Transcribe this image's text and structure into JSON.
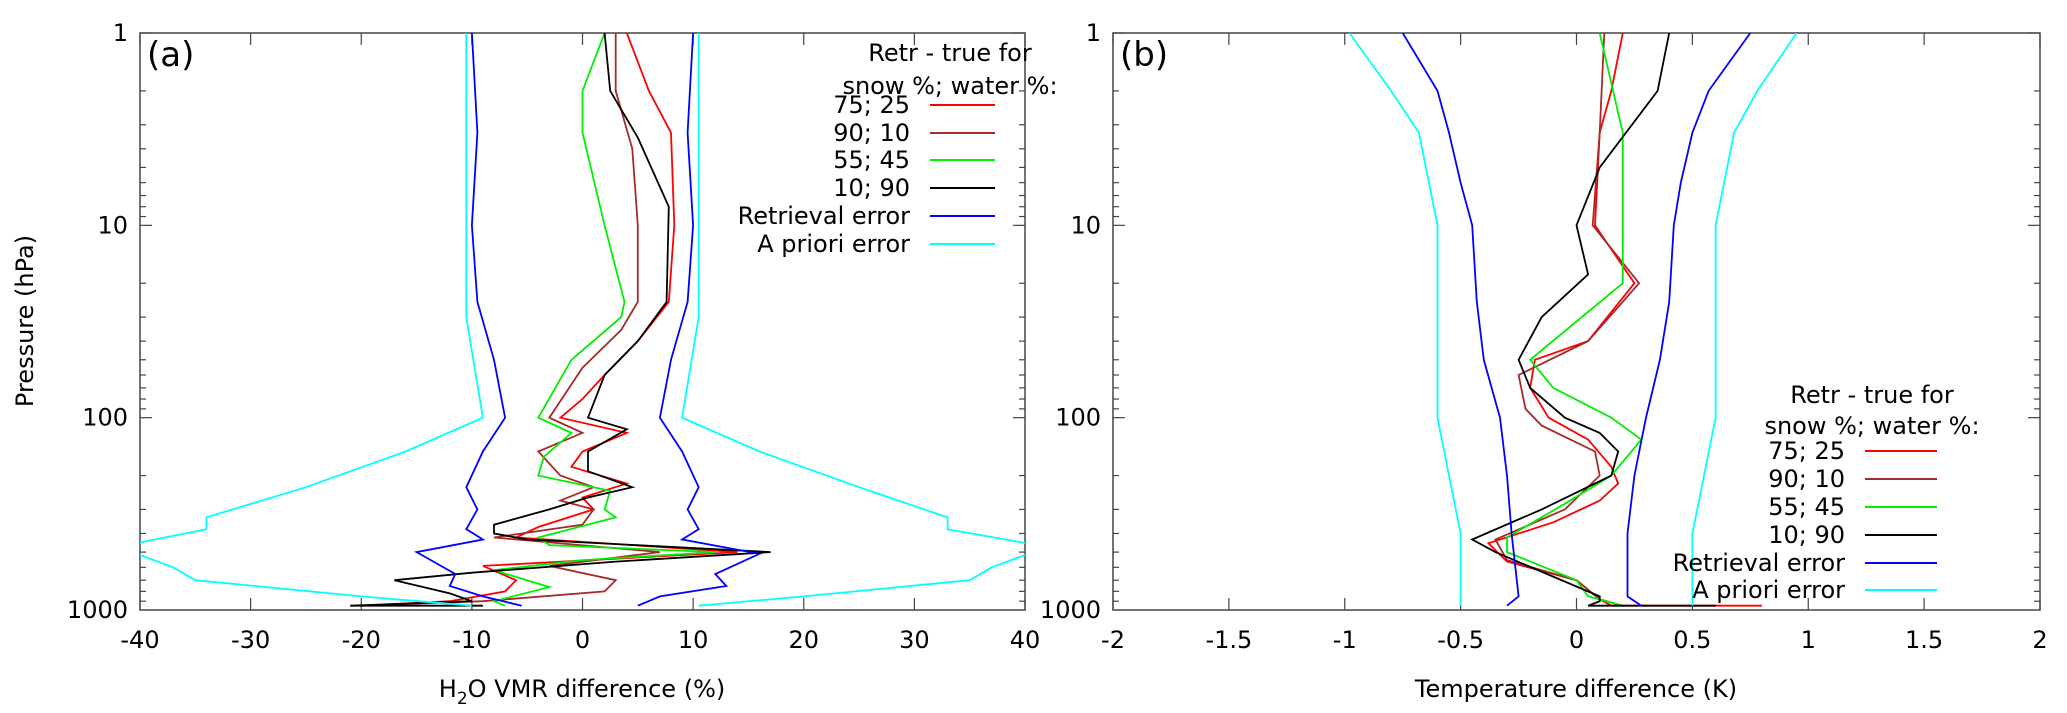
{
  "chart_data": [
    {
      "type": "line",
      "panel_label": "(a)",
      "xlabel_main": "H",
      "xlabel_sub": "2",
      "xlabel_rest": "O VMR difference (%)",
      "ylabel": "Pressure (hPa)",
      "xlim": [
        -40,
        40
      ],
      "ylim": [
        1,
        1000
      ],
      "y_scale": "log",
      "y_reversed": true,
      "xticks": [
        -40,
        -30,
        -20,
        -10,
        0,
        10,
        20,
        30,
        40
      ],
      "yticks": [
        1,
        10,
        100,
        1000
      ],
      "grid": false,
      "legend_placement": "top-right",
      "legend_title": [
        "Retr - true for",
        "snow %; water %:"
      ],
      "series": [
        {
          "name": "75; 25",
          "color": "#ff0000",
          "points": [
            [
              4,
              1
            ],
            [
              6,
              2
            ],
            [
              8,
              3.3
            ],
            [
              8.3,
              10
            ],
            [
              7.8,
              25
            ],
            [
              5,
              40
            ],
            [
              2,
              60
            ],
            [
              0,
              80
            ],
            [
              -2,
              100
            ],
            [
              4,
              120
            ],
            [
              0,
              150
            ],
            [
              -1,
              180
            ],
            [
              4,
              220
            ],
            [
              0,
              260
            ],
            [
              1,
              300
            ],
            [
              -4,
              370
            ],
            [
              -6,
              420
            ],
            [
              14,
              500
            ],
            [
              -9,
              590
            ],
            [
              -6,
              700
            ],
            [
              -7,
              800
            ],
            [
              -12,
              900
            ],
            [
              -20,
              950
            ]
          ]
        },
        {
          "name": "90; 10",
          "color": "#a52a2a",
          "points": [
            [
              3,
              1
            ],
            [
              3,
              2
            ],
            [
              4.5,
              4
            ],
            [
              5,
              10
            ],
            [
              5,
              25
            ],
            [
              3.5,
              35
            ],
            [
              0,
              55
            ],
            [
              -3,
              100
            ],
            [
              0,
              120
            ],
            [
              -4,
              150
            ],
            [
              -2,
              200
            ],
            [
              1,
              230
            ],
            [
              -2,
              270
            ],
            [
              1,
              300
            ],
            [
              0,
              360
            ],
            [
              -8,
              420
            ],
            [
              7,
              500
            ],
            [
              -3,
              590
            ],
            [
              3,
              700
            ],
            [
              2,
              800
            ],
            [
              -9,
              900
            ],
            [
              -20,
              950
            ]
          ]
        },
        {
          "name": "55; 45",
          "color": "#00ee00",
          "points": [
            [
              2,
              1
            ],
            [
              0,
              2
            ],
            [
              0,
              3.3
            ],
            [
              2,
              10
            ],
            [
              3.8,
              25
            ],
            [
              3.5,
              30
            ],
            [
              -1,
              50
            ],
            [
              -4,
              100
            ],
            [
              -1,
              120
            ],
            [
              -3.5,
              160
            ],
            [
              -4,
              200
            ],
            [
              2.5,
              240
            ],
            [
              2,
              300
            ],
            [
              3,
              330
            ],
            [
              -4,
              420
            ],
            [
              -3,
              460
            ],
            [
              12,
              500
            ],
            [
              0,
              550
            ],
            [
              -8,
              620
            ],
            [
              -3,
              760
            ],
            [
              -8,
              900
            ],
            [
              -7,
              950
            ]
          ]
        },
        {
          "name": "10; 90",
          "color": "#000000",
          "points": [
            [
              2,
              1
            ],
            [
              2.5,
              2
            ],
            [
              5,
              3.5
            ],
            [
              7.8,
              8
            ],
            [
              7.6,
              25
            ],
            [
              5,
              40
            ],
            [
              2,
              60
            ],
            [
              0.5,
              100
            ],
            [
              4,
              115
            ],
            [
              0.5,
              150
            ],
            [
              0.5,
              190
            ],
            [
              4.5,
              230
            ],
            [
              0.5,
              260
            ],
            [
              -3,
              300
            ],
            [
              -8,
              360
            ],
            [
              -8,
              400
            ],
            [
              -5,
              430
            ],
            [
              17,
              500
            ],
            [
              3,
              560
            ],
            [
              -10,
              640
            ],
            [
              -17,
              700
            ],
            [
              -12,
              820
            ],
            [
              -10,
              900
            ],
            [
              -21,
              950
            ],
            [
              -9,
              950
            ]
          ]
        },
        {
          "name": "Retrieval error",
          "color": "#0000ff",
          "points": [
            [
              -10,
              1
            ],
            [
              -9.5,
              3.3
            ],
            [
              -10,
              10
            ],
            [
              -9.5,
              25
            ],
            [
              -8,
              50
            ],
            [
              -7,
              100
            ],
            [
              -9,
              150
            ],
            [
              -10.5,
              230
            ],
            [
              -9.5,
              300
            ],
            [
              -10.5,
              380
            ],
            [
              -9,
              430
            ],
            [
              -15,
              500
            ],
            [
              -11.5,
              650
            ],
            [
              -12,
              750
            ],
            [
              -9,
              850
            ],
            [
              -5.5,
              950
            ]
          ],
          "mirror_points": [
            [
              10,
              1
            ],
            [
              9.5,
              3.3
            ],
            [
              10,
              10
            ],
            [
              9.5,
              25
            ],
            [
              8,
              50
            ],
            [
              7,
              100
            ],
            [
              9,
              150
            ],
            [
              10.5,
              230
            ],
            [
              9.5,
              300
            ],
            [
              10.5,
              380
            ],
            [
              9,
              430
            ],
            [
              16,
              510
            ],
            [
              12,
              650
            ],
            [
              13,
              750
            ],
            [
              7,
              850
            ],
            [
              5,
              950
            ]
          ]
        },
        {
          "name": "A priori error",
          "color": "#00ffff",
          "points": [
            [
              -10.5,
              1
            ],
            [
              -10.5,
              30
            ],
            [
              -9,
              100
            ],
            [
              -16,
              150
            ],
            [
              -25,
              230
            ],
            [
              -34,
              330
            ],
            [
              -34,
              380
            ],
            [
              -42,
              470
            ],
            [
              -37,
              600
            ],
            [
              -35,
              700
            ],
            [
              -20,
              850
            ],
            [
              -10,
              950
            ]
          ],
          "mirror_points": [
            [
              10.5,
              1
            ],
            [
              10.5,
              30
            ],
            [
              9,
              100
            ],
            [
              16,
              150
            ],
            [
              25,
              230
            ],
            [
              33,
              330
            ],
            [
              33,
              380
            ],
            [
              42,
              470
            ],
            [
              37,
              600
            ],
            [
              35,
              700
            ],
            [
              20,
              850
            ],
            [
              10.5,
              950
            ]
          ]
        }
      ]
    },
    {
      "type": "line",
      "panel_label": "(b)",
      "xlabel": "Temperature difference (K)",
      "xlim": [
        -2,
        2
      ],
      "ylim": [
        1,
        1000
      ],
      "y_scale": "log",
      "y_reversed": true,
      "xticks": [
        -2,
        -1.5,
        -1,
        -0.5,
        0,
        0.5,
        1,
        1.5,
        2
      ],
      "yticks": [
        1,
        10,
        100,
        1000
      ],
      "grid": false,
      "legend_placement": "bottom-right",
      "legend_title": [
        "Retr - true for",
        "snow %; water %:"
      ],
      "series": [
        {
          "name": "75; 25",
          "color": "#ff0000",
          "points": [
            [
              0.2,
              1
            ],
            [
              0.15,
              2
            ],
            [
              0.1,
              3.3
            ],
            [
              0.08,
              10
            ],
            [
              0.25,
              20
            ],
            [
              0.05,
              40
            ],
            [
              -0.18,
              50
            ],
            [
              -0.2,
              70
            ],
            [
              -0.12,
              100
            ],
            [
              0.05,
              130
            ],
            [
              0.15,
              180
            ],
            [
              0.18,
              220
            ],
            [
              0.1,
              270
            ],
            [
              -0.1,
              350
            ],
            [
              -0.38,
              450
            ],
            [
              -0.3,
              560
            ],
            [
              0,
              700
            ],
            [
              0.1,
              880
            ],
            [
              0.15,
              950
            ],
            [
              0.8,
              950
            ]
          ]
        },
        {
          "name": "90; 10",
          "color": "#a52a2a",
          "points": [
            [
              0.12,
              1
            ],
            [
              0.1,
              3.3
            ],
            [
              0.07,
              10
            ],
            [
              0.27,
              20
            ],
            [
              0.05,
              40
            ],
            [
              -0.25,
              60
            ],
            [
              -0.22,
              90
            ],
            [
              -0.15,
              110
            ],
            [
              0.08,
              150
            ],
            [
              0.1,
              200
            ],
            [
              -0.05,
              300
            ],
            [
              -0.35,
              430
            ],
            [
              -0.3,
              550
            ],
            [
              0,
              700
            ],
            [
              0.1,
              880
            ],
            [
              0.2,
              950
            ]
          ]
        },
        {
          "name": "55; 45",
          "color": "#00ee00",
          "points": [
            [
              0.1,
              1
            ],
            [
              0.2,
              3.3
            ],
            [
              0.2,
              10
            ],
            [
              0.2,
              20
            ],
            [
              -0.2,
              50
            ],
            [
              -0.1,
              70
            ],
            [
              0.15,
              100
            ],
            [
              0.28,
              130
            ],
            [
              0.15,
              200
            ],
            [
              -0.05,
              280
            ],
            [
              -0.3,
              420
            ],
            [
              -0.3,
              500
            ],
            [
              0,
              700
            ],
            [
              0.05,
              850
            ],
            [
              0.2,
              950
            ]
          ]
        },
        {
          "name": "10; 90",
          "color": "#000000",
          "points": [
            [
              0.4,
              1
            ],
            [
              0.35,
              2
            ],
            [
              0.1,
              5
            ],
            [
              0,
              10
            ],
            [
              0.05,
              18
            ],
            [
              -0.15,
              30
            ],
            [
              -0.25,
              50
            ],
            [
              -0.2,
              70
            ],
            [
              -0.05,
              100
            ],
            [
              0.1,
              120
            ],
            [
              0.18,
              150
            ],
            [
              0.15,
              200
            ],
            [
              -0.15,
              300
            ],
            [
              -0.45,
              430
            ],
            [
              -0.35,
              500
            ],
            [
              0.1,
              850
            ],
            [
              0.1,
              900
            ],
            [
              0.05,
              950
            ],
            [
              0.6,
              950
            ]
          ]
        },
        {
          "name": "Retrieval error",
          "color": "#0000ff",
          "points": [
            [
              -0.75,
              1
            ],
            [
              -0.6,
              2
            ],
            [
              -0.55,
              3.3
            ],
            [
              -0.5,
              6
            ],
            [
              -0.45,
              10
            ],
            [
              -0.43,
              25
            ],
            [
              -0.4,
              50
            ],
            [
              -0.33,
              100
            ],
            [
              -0.3,
              200
            ],
            [
              -0.28,
              400
            ],
            [
              -0.25,
              850
            ],
            [
              -0.3,
              950
            ]
          ],
          "mirror_points": [
            [
              0.75,
              1
            ],
            [
              0.57,
              2
            ],
            [
              0.5,
              3.3
            ],
            [
              0.45,
              6
            ],
            [
              0.42,
              10
            ],
            [
              0.4,
              25
            ],
            [
              0.36,
              50
            ],
            [
              0.3,
              100
            ],
            [
              0.25,
              200
            ],
            [
              0.22,
              400
            ],
            [
              0.22,
              850
            ],
            [
              0.28,
              950
            ]
          ]
        },
        {
          "name": "A priori error",
          "color": "#00ffff",
          "points": [
            [
              -0.98,
              1
            ],
            [
              -0.8,
              2
            ],
            [
              -0.68,
              3.3
            ],
            [
              -0.6,
              10
            ],
            [
              -0.6,
              100
            ],
            [
              -0.55,
              200
            ],
            [
              -0.5,
              400
            ],
            [
              -0.5,
              950
            ]
          ],
          "mirror_points": [
            [
              0.95,
              1
            ],
            [
              0.78,
              2
            ],
            [
              0.68,
              3.3
            ],
            [
              0.6,
              10
            ],
            [
              0.6,
              100
            ],
            [
              0.55,
              200
            ],
            [
              0.5,
              400
            ],
            [
              0.5,
              950
            ]
          ]
        }
      ]
    }
  ]
}
